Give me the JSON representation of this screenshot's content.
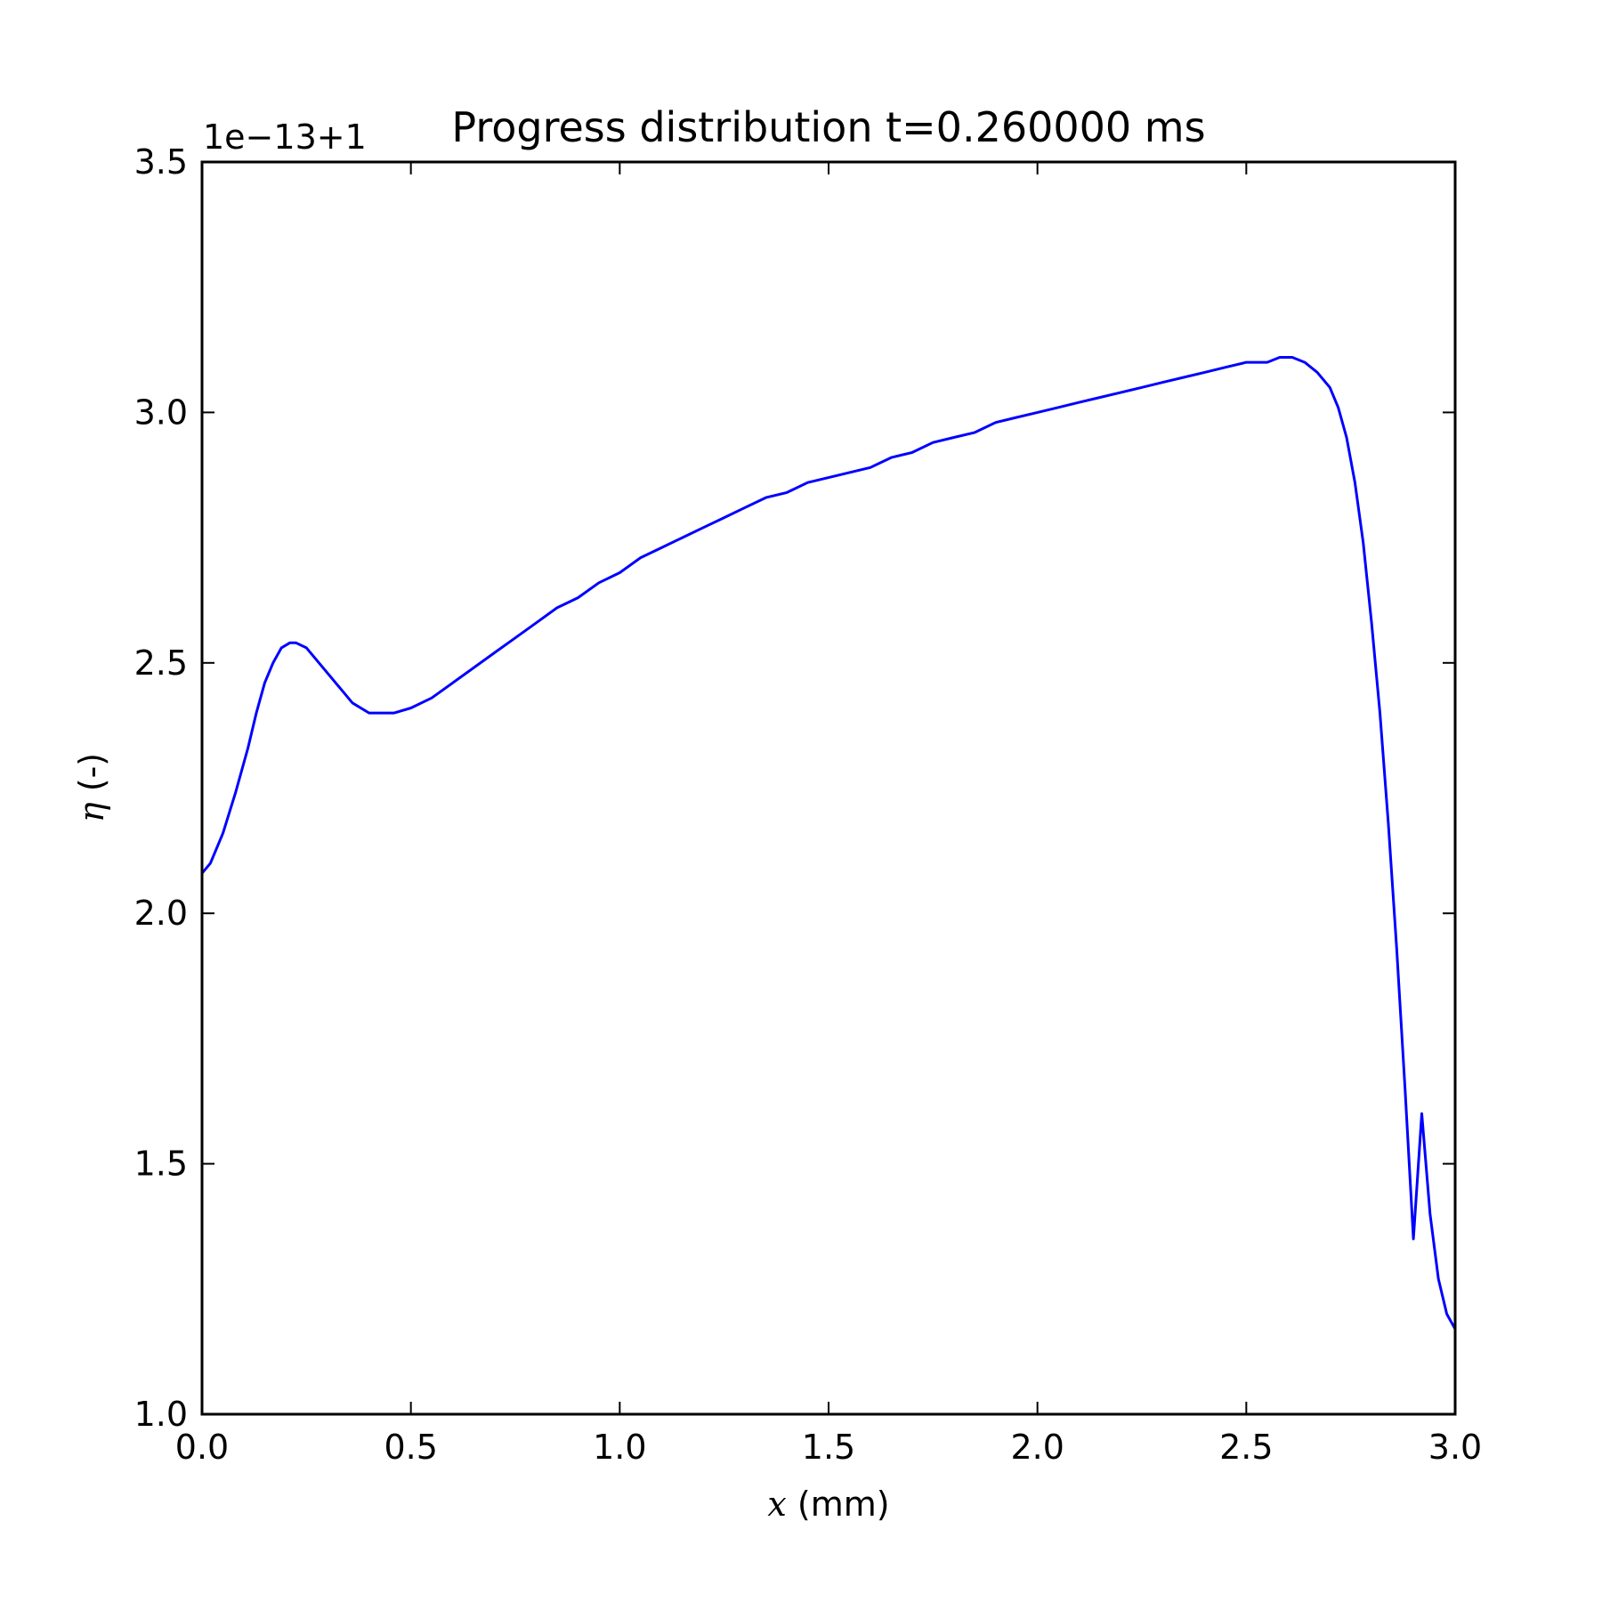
{
  "chart_data": {
    "type": "line",
    "title": "Progress distribution t=0.260000 ms",
    "offset_text": "1e−13+1",
    "xlabel_symbol": "x",
    "xlabel_unit": " (mm)",
    "ylabel_symbol": "η",
    "ylabel_unit": " (-)",
    "xlim": [
      0.0,
      3.0
    ],
    "ylim": [
      1.0,
      3.5
    ],
    "x_ticks": [
      0.0,
      0.5,
      1.0,
      1.5,
      2.0,
      2.5,
      3.0
    ],
    "x_tick_labels": [
      "0.0",
      "0.5",
      "1.0",
      "1.5",
      "2.0",
      "2.5",
      "3.0"
    ],
    "y_ticks": [
      1.0,
      1.5,
      2.0,
      2.5,
      3.0,
      3.5
    ],
    "y_tick_labels": [
      "1.0",
      "1.5",
      "2.0",
      "2.5",
      "3.0",
      "3.5"
    ],
    "grid": false,
    "series": [
      {
        "color": "#0000ff",
        "x": [
          0.0,
          0.02,
          0.05,
          0.08,
          0.11,
          0.13,
          0.15,
          0.17,
          0.19,
          0.21,
          0.225,
          0.25,
          0.28,
          0.32,
          0.36,
          0.4,
          0.43,
          0.46,
          0.5,
          0.55,
          0.6,
          0.65,
          0.7,
          0.75,
          0.8,
          0.85,
          0.9,
          0.95,
          1.0,
          1.05,
          1.1,
          1.15,
          1.2,
          1.25,
          1.3,
          1.35,
          1.4,
          1.45,
          1.5,
          1.55,
          1.6,
          1.65,
          1.7,
          1.75,
          1.8,
          1.85,
          1.9,
          1.95,
          2.0,
          2.05,
          2.1,
          2.15,
          2.2,
          2.25,
          2.3,
          2.35,
          2.4,
          2.45,
          2.5,
          2.55,
          2.58,
          2.61,
          2.64,
          2.67,
          2.7,
          2.72,
          2.74,
          2.76,
          2.78,
          2.8,
          2.82,
          2.84,
          2.86,
          2.88,
          2.9,
          2.92,
          2.94,
          2.96,
          2.98,
          3.0
        ],
        "y": [
          2.08,
          2.1,
          2.16,
          2.24,
          2.33,
          2.4,
          2.46,
          2.5,
          2.53,
          2.54,
          2.54,
          2.53,
          2.5,
          2.46,
          2.42,
          2.4,
          2.4,
          2.4,
          2.41,
          2.43,
          2.46,
          2.49,
          2.52,
          2.55,
          2.58,
          2.61,
          2.63,
          2.66,
          2.68,
          2.71,
          2.73,
          2.75,
          2.77,
          2.79,
          2.81,
          2.83,
          2.84,
          2.86,
          2.87,
          2.88,
          2.89,
          2.91,
          2.92,
          2.94,
          2.95,
          2.96,
          2.98,
          2.99,
          3.0,
          3.01,
          3.02,
          3.03,
          3.04,
          3.05,
          3.06,
          3.07,
          3.08,
          3.09,
          3.1,
          3.1,
          3.11,
          3.11,
          3.1,
          3.08,
          3.05,
          3.01,
          2.95,
          2.86,
          2.74,
          2.58,
          2.4,
          2.18,
          1.93,
          1.65,
          1.35,
          1.6,
          1.4,
          1.27,
          1.2,
          1.17
        ]
      }
    ]
  }
}
